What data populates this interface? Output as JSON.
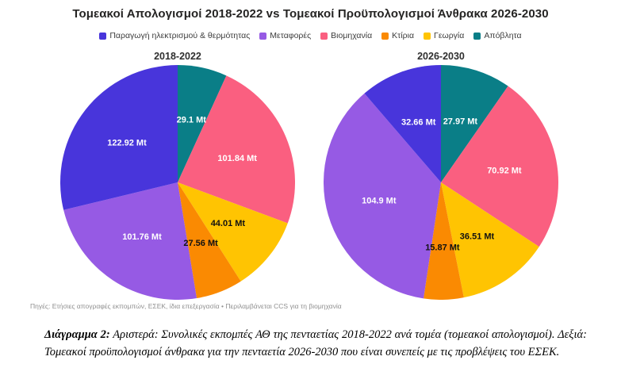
{
  "title": "Τομεακοί Απολογισμοί 2018-2022 vs Τομεακοί Προϋπολογισμοί Άνθρακα 2026-2030",
  "legend": [
    {
      "key": "power-heat",
      "label": "Παραγωγή ηλεκτρισμού & θερμότητας",
      "color": "#4835DB"
    },
    {
      "key": "transport",
      "label": "Μεταφορές",
      "color": "#965AE4"
    },
    {
      "key": "industry",
      "label": "Βιομηχανία",
      "color": "#FA5F80"
    },
    {
      "key": "buildings",
      "label": "Κτίρια",
      "color": "#FA8A02"
    },
    {
      "key": "agriculture",
      "label": "Γεωργία",
      "color": "#FFC402"
    },
    {
      "key": "waste",
      "label": "Απόβλητα",
      "color": "#0A7E87"
    }
  ],
  "footnote": "Πηγές: Ετήσιες απογραφές εκπομπών, ΕΣΕΚ, ίδια επεξεργασία • Περιλαμβάνεται CCS για τη βιομηχανία",
  "caption": {
    "label": "Διάγραμμα 2:",
    "text": " Αριστερά: Συνολικές εκπομπές ΑΘ της πενταετίας 2018-2022 ανά τομέα (τομεακοί απολογισμοί). Δεξιά: Τομεακοί προϋπολογισμοί άνθρακα για την πενταετία 2026-2030 που είναι συνεπείς με τις προβλέψεις του ΕΣΕΚ."
  },
  "chart_data": [
    {
      "type": "pie",
      "title": "2018-2022",
      "unit": "Mt",
      "total": 427.19,
      "start_angle_deg": 0,
      "direction": "clockwise",
      "slices": [
        {
          "key": "waste",
          "name": "Απόβλητα",
          "value": 29.1,
          "label": "29.1 Mt",
          "color": "#0A7E87",
          "label_color": "#ffffff"
        },
        {
          "key": "industry",
          "name": "Βιομηχανία",
          "value": 101.84,
          "label": "101.84 Mt",
          "color": "#FA5F80",
          "label_color": "#ffffff"
        },
        {
          "key": "agriculture",
          "name": "Γεωργία",
          "value": 44.01,
          "label": "44.01 Mt",
          "color": "#FFC402",
          "label_color": "#111111"
        },
        {
          "key": "buildings",
          "name": "Κτίρια",
          "value": 27.56,
          "label": "27.56 Mt",
          "color": "#FA8A02",
          "label_color": "#111111"
        },
        {
          "key": "transport",
          "name": "Μεταφορές",
          "value": 101.76,
          "label": "101.76 Mt",
          "color": "#965AE4",
          "label_color": "#ffffff"
        },
        {
          "key": "power-heat",
          "name": "Παραγωγή ηλεκτρισμού & θερμότητας",
          "value": 122.92,
          "label": "122.92 Mt",
          "color": "#4835DB",
          "label_color": "#ffffff"
        }
      ]
    },
    {
      "type": "pie",
      "title": "2026-2030",
      "unit": "Mt",
      "total": 288.83,
      "start_angle_deg": 0,
      "direction": "clockwise",
      "slices": [
        {
          "key": "waste",
          "name": "Απόβλητα",
          "value": 27.97,
          "label": "27.97 Mt",
          "color": "#0A7E87",
          "label_color": "#ffffff"
        },
        {
          "key": "industry",
          "name": "Βιομηχανία",
          "value": 70.92,
          "label": "70.92 Mt",
          "color": "#FA5F80",
          "label_color": "#ffffff"
        },
        {
          "key": "agriculture",
          "name": "Γεωργία",
          "value": 36.51,
          "label": "36.51 Mt",
          "color": "#FFC402",
          "label_color": "#111111"
        },
        {
          "key": "buildings",
          "name": "Κτίρια",
          "value": 15.87,
          "label": "15.87 Mt",
          "color": "#FA8A02",
          "label_color": "#111111"
        },
        {
          "key": "transport",
          "name": "Μεταφορές",
          "value": 104.9,
          "label": "104.9 Mt",
          "color": "#965AE4",
          "label_color": "#ffffff"
        },
        {
          "key": "power-heat",
          "name": "Παραγωγή ηλεκτρισμού & θερμότητας",
          "value": 32.66,
          "label": "32.66 Mt",
          "color": "#4835DB",
          "label_color": "#ffffff"
        }
      ]
    }
  ]
}
